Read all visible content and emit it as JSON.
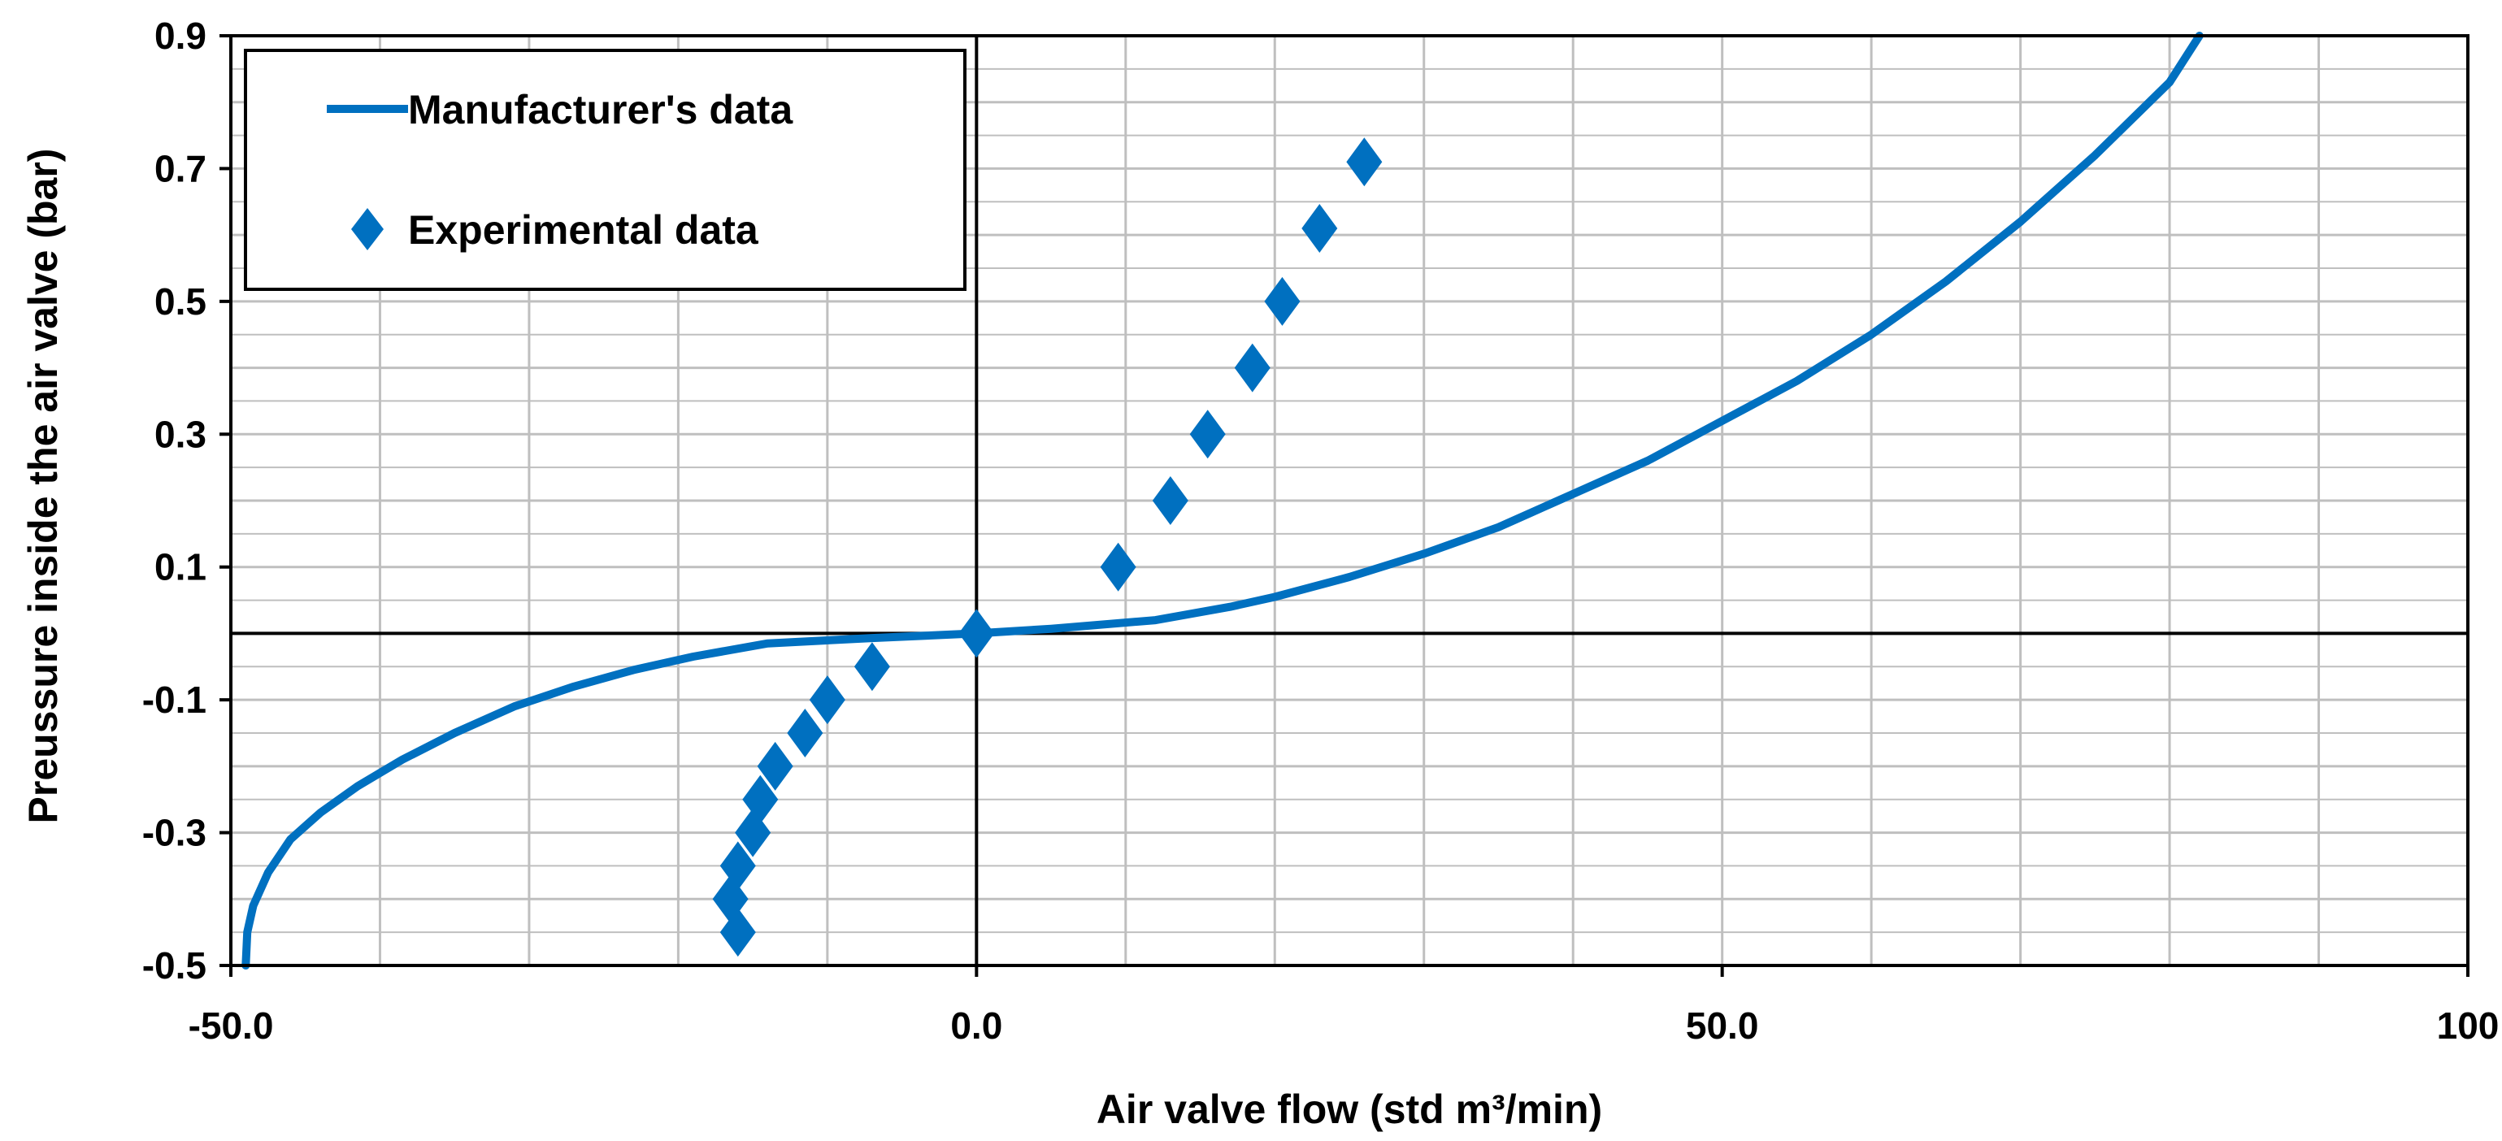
{
  "chart_data": {
    "type": "scatter",
    "title": "",
    "xlabel": "Air valve flow (std m³/min)",
    "ylabel": "Preussure inside  the air valve (bar)",
    "xlim": [
      -50,
      100
    ],
    "ylim": [
      -0.5,
      0.9
    ],
    "x_ticks": [
      -50,
      0,
      50,
      100
    ],
    "x_tick_labels": [
      "-50.0",
      "0.0",
      "50.0",
      "100"
    ],
    "x_minor_step": 10,
    "y_ticks": [
      -0.5,
      -0.3,
      -0.1,
      0.1,
      0.3,
      0.5,
      0.7,
      0.9
    ],
    "y_tick_labels": [
      "-0.5",
      "-0.3",
      "-0.1",
      "0.1",
      "0.3",
      "0.5",
      "0.7",
      "0.9"
    ],
    "y_minor_step": 0.05,
    "grid": true,
    "legend_position": "top-left",
    "colors": {
      "series": "#0070C0",
      "axis": "#000000",
      "grid": "#bfbfbf"
    },
    "series": [
      {
        "name": "Manufacturer's data",
        "kind": "line",
        "x": [
          -49,
          -48.9,
          -48.5,
          -47.5,
          -46,
          -44,
          -41.5,
          -38.5,
          -35,
          -31,
          -27,
          -23,
          -19,
          -14,
          -7,
          0,
          5,
          12,
          17,
          20,
          25,
          30,
          35,
          40,
          45,
          50,
          55,
          60,
          65,
          70,
          75,
          80,
          82
        ],
        "y": [
          -0.5,
          -0.45,
          -0.41,
          -0.36,
          -0.31,
          -0.27,
          -0.23,
          -0.19,
          -0.15,
          -0.11,
          -0.08,
          -0.055,
          -0.035,
          -0.015,
          -0.007,
          0,
          0.007,
          0.02,
          0.04,
          0.055,
          0.085,
          0.12,
          0.16,
          0.21,
          0.26,
          0.32,
          0.38,
          0.45,
          0.53,
          0.62,
          0.72,
          0.83,
          0.9
        ]
      },
      {
        "name": "Experimental data",
        "kind": "scatter",
        "x": [
          26,
          23,
          20.5,
          18.5,
          15.5,
          13,
          9.5,
          0,
          -7,
          -10,
          -11.5,
          -13.5,
          -14.5,
          -15,
          -16,
          -16.5,
          -16
        ],
        "y": [
          0.71,
          0.61,
          0.5,
          0.4,
          0.3,
          0.2,
          0.1,
          0,
          -0.05,
          -0.1,
          -0.15,
          -0.2,
          -0.25,
          -0.3,
          -0.35,
          -0.4,
          -0.45
        ]
      }
    ]
  }
}
